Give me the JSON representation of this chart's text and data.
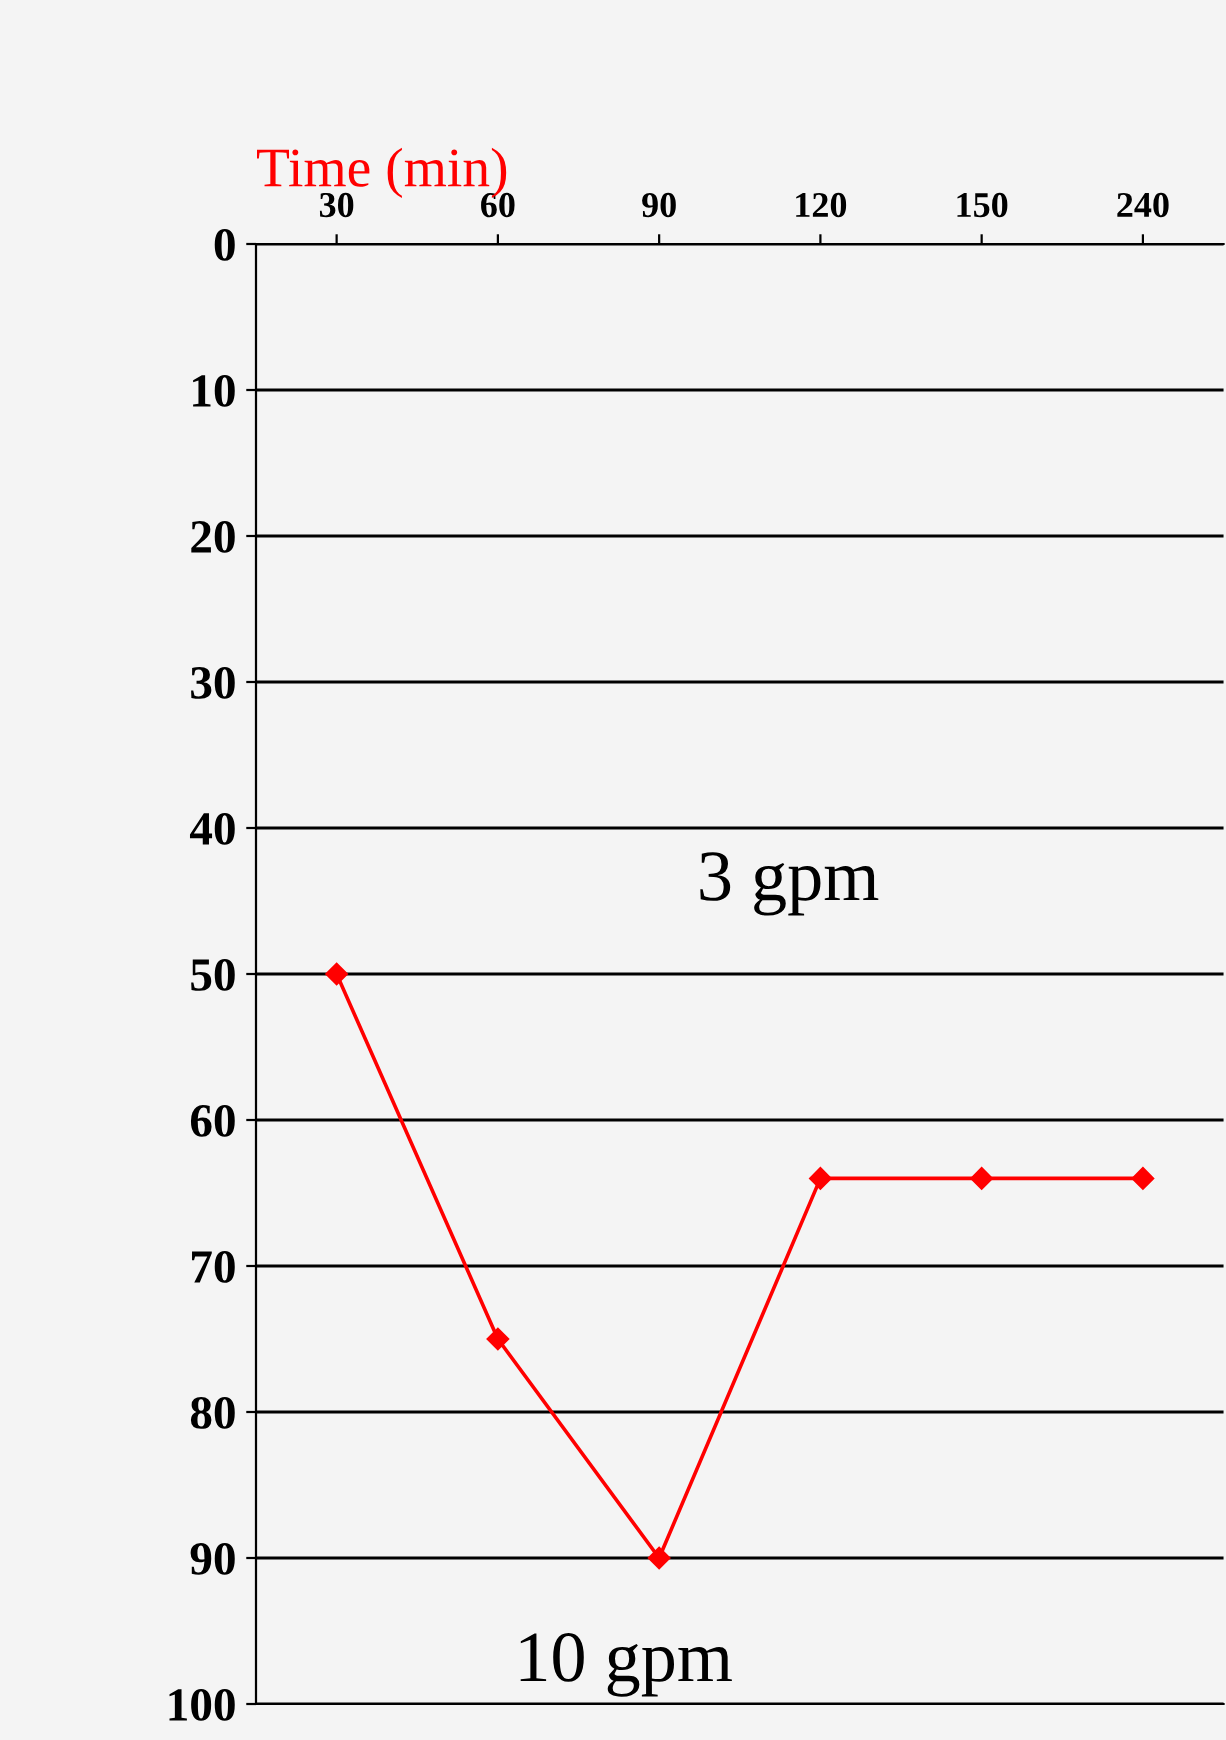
{
  "chart_data": {
    "type": "line",
    "xlabel": "Time (min)",
    "categories": [
      "30",
      "60",
      "90",
      "120",
      "150",
      "240"
    ],
    "series": [
      {
        "color": "#ff0000",
        "values": [
          50,
          75,
          90,
          64,
          64,
          64
        ]
      }
    ],
    "ylim": [
      100,
      0
    ],
    "yticks": [
      0,
      10,
      20,
      30,
      40,
      50,
      60,
      70,
      80,
      90,
      100
    ],
    "grid": "y",
    "marker": "diamond",
    "line_style": "solid",
    "annotations": [
      "3 gpm",
      "10 gpm"
    ]
  }
}
